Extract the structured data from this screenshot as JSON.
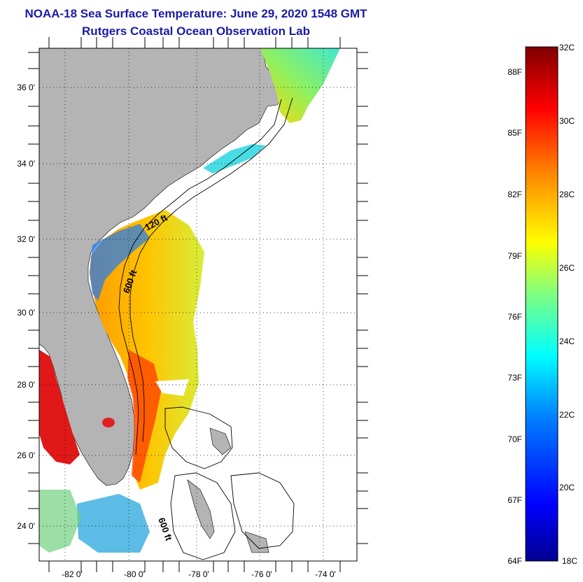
{
  "title": "NOAA-18 Sea Surface Temperature:  June 29, 2020 1548 GMT",
  "subtitle": "Rutgers Coastal Ocean Observation Lab",
  "map": {
    "lon_range": [
      -83,
      -73
    ],
    "lat_range": [
      23,
      37
    ],
    "lon_ticks": [
      "-82 0'",
      "-80 0'",
      "-78 0'",
      "-76 0'",
      "-74 0'"
    ],
    "lat_ticks": [
      "36 0'",
      "34 0'",
      "32 0'",
      "30 0'",
      "28 0'",
      "26 0'",
      "24 0'"
    ],
    "grid": "dotted",
    "land_color": "#b4b4b4",
    "isobath_labels": [
      "120 ft",
      "600 ft",
      "600 ft"
    ]
  },
  "colorbar": {
    "celsius_labels": [
      "32C",
      "30C",
      "28C",
      "26C",
      "24C",
      "22C",
      "20C",
      "18C"
    ],
    "fahrenheit_labels": [
      "88F",
      "85F",
      "82F",
      "79F",
      "76F",
      "73F",
      "70F",
      "67F",
      "64F"
    ],
    "range_c": [
      18,
      32
    ],
    "colormap": [
      "#00008f",
      "#0000ff",
      "#0080ff",
      "#00ffff",
      "#80ff80",
      "#ffff00",
      "#ff8000",
      "#ff0000",
      "#800000"
    ]
  }
}
